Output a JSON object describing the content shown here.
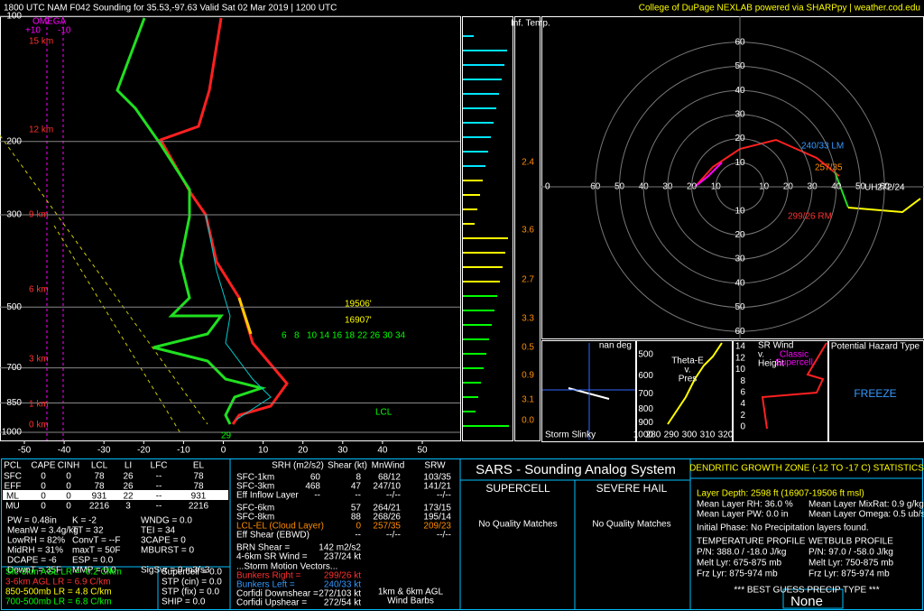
{
  "header": {
    "title": "1800 UTC NAM F042 Sounding for 35.53,-97.63 Valid  Sat 02 Mar 2019 | 1200 UTC",
    "credit": "College of DuPage NEXLAB powered via SHARPpy | weather.cod.edu"
  },
  "skewt": {
    "omega": "OMEGA",
    "omega_ticks": [
      "+10",
      "-10"
    ],
    "pressure_ticks": [
      100,
      200,
      300,
      500,
      700,
      850,
      1000
    ],
    "temp_ticks": [
      -50,
      -40,
      -30,
      -20,
      -10,
      0,
      10,
      20,
      30,
      40,
      50
    ],
    "heights": [
      "15 km",
      "12 km",
      "9 km",
      "6 km",
      "3 km",
      "1 km",
      "0 km"
    ],
    "dgz_top": "19506'",
    "dgz_bottom": "16907'",
    "lcl": "LCL",
    "sfc_temp": "29",
    "mixing_ratios": [
      "6",
      "8",
      "10",
      "14",
      "16",
      "18",
      "22",
      "26",
      "30",
      "34"
    ]
  },
  "inferred_temp": {
    "title": "Inf. Temp.",
    "labels": [
      "2.4",
      "3.6",
      "2.7",
      "3.3",
      "0.5",
      "0.9",
      "3.1",
      "0.0"
    ]
  },
  "hodograph": {
    "rings": [
      10,
      20,
      30,
      40,
      50,
      60
    ],
    "zero": "0",
    "lm": "240/33 LM",
    "mean": "257/35",
    "rm": "299/26 RM",
    "uh": "UH",
    "uh_value": "272/24"
  },
  "slinky": {
    "deg": "nan deg",
    "title": "Storm Slinky"
  },
  "theta_e": {
    "title": [
      "Theta-E",
      "v.",
      "Pres"
    ],
    "yticks": [
      500,
      600,
      700,
      800,
      900,
      1000
    ],
    "xticks": [
      280,
      290,
      300,
      310,
      320
    ]
  },
  "sr_wind": {
    "title": [
      "SR Wind",
      "v.",
      "Height"
    ],
    "note": [
      "Classic",
      "Supercell"
    ],
    "yticks": [
      0,
      2,
      4,
      6,
      8,
      10,
      12,
      14
    ]
  },
  "hazard": {
    "title": "Potential Hazard Type",
    "value": "FREEZE"
  },
  "parcels": {
    "header": [
      "PCL",
      "CAPE",
      "CINH",
      "LCL",
      "LI",
      "LFC",
      "EL"
    ],
    "rows": [
      [
        "SFC",
        "0",
        "0",
        "78",
        "26",
        "--",
        "78"
      ],
      [
        "EFF",
        "0",
        "0",
        "78",
        "26",
        "--",
        "78"
      ],
      [
        "ML",
        "0",
        "0",
        "931",
        "22",
        "--",
        "931"
      ],
      [
        "MU",
        "0",
        "0",
        "2216",
        "3",
        "--",
        "2216"
      ]
    ]
  },
  "indices": [
    [
      "PW = 0.48in",
      "K = -2",
      "WNDG = 0.0"
    ],
    [
      "MeanW = 3.4g/kg",
      "TT = 32",
      "TEI = 34"
    ],
    [
      "LowRH = 82%",
      "ConvT = --F",
      "3CAPE = 0"
    ],
    [
      "MidRH = 31%",
      "maxT = 50F",
      "MBURST = 0"
    ],
    [
      "DCAPE = -6",
      "ESP = 0.0"
    ],
    [
      "DownT = 35F",
      "MMP = 0.0",
      "SigSvr = 0 m3/s3"
    ]
  ],
  "lapse_rates": [
    "Sfc-3km AGL LR = -0.2 C/km",
    "3-6km AGL LR = 6.9 C/km",
    "850-500mb LR = 4.8 C/km",
    "700-500mb LR = 6.8 C/km"
  ],
  "composites": [
    "Supercell = 0.0",
    "STP (cin) = 0.0",
    "STP (fix) = 0.0",
    "SHIP = 0.0"
  ],
  "kinematics": {
    "header": [
      "SRH (m2/s2)",
      "Shear (kt)",
      "MnWind",
      "SRW"
    ],
    "rows": [
      [
        "SFC-1km",
        "60",
        "8",
        "68/12",
        "103/35"
      ],
      [
        "SFC-3km",
        "468",
        "47",
        "247/10",
        "141/21"
      ],
      [
        "Eff Inflow Layer",
        "--",
        "--",
        "--/--",
        "--/--"
      ]
    ],
    "rows2": [
      [
        "SFC-6km",
        "57",
        "264/21",
        "173/15"
      ],
      [
        "SFC-8km",
        "88",
        "268/26",
        "195/14"
      ],
      [
        "LCL-EL (Cloud Layer)",
        "0",
        "257/35",
        "209/23"
      ],
      [
        "Eff Shear (EBWD)",
        "--",
        "--/--",
        "--/--"
      ]
    ],
    "extra": [
      [
        "BRN Shear = ",
        "142 m2/s2"
      ],
      [
        "4-6km SR Wind = ",
        "237/24 kt"
      ]
    ],
    "storm_title": "...Storm Motion Vectors...",
    "storm": [
      [
        "Bunkers Right = ",
        "299/26 kt"
      ],
      [
        "Bunkers Left = ",
        "240/33 kt"
      ],
      [
        "Corfidi Downshear = ",
        "272/103 kt"
      ],
      [
        "Corfidi Upshear = ",
        "272/54 kt"
      ]
    ],
    "barbs_label": [
      "1km & 6km AGL",
      "Wind Barbs"
    ]
  },
  "sars": {
    "title": "SARS - Sounding Analog System",
    "supercell": "SUPERCELL",
    "hail": "SEVERE HAIL",
    "supercell_result": "No Quality Matches",
    "hail_result": "No Quality Matches"
  },
  "dgz": {
    "title": "DENDRITIC GROWTH ZONE (-12 TO -17 C) STATISTICS",
    "depth": "Layer Depth: 2598 ft (16907-19506 ft msl)",
    "rh": "Mean Layer RH: 36.0 %",
    "mixrat": "Mean Layer MixRat: 0.9 g/kg",
    "pw": "Mean Layer PW: 0.0 in",
    "omega": "Mean Layer Omega: 0.5 ub/s",
    "phase": "Initial Phase:  No Precipitation layers found.",
    "temp_title": "TEMPERATURE PROFILE",
    "wb_title": "WETBULB PROFILE",
    "temp": [
      "P/N: 388.0 / -18.0 J/kg",
      "Melt Lyr: 675-875 mb",
      "Frz Lyr: 875-974 mb"
    ],
    "wb": [
      "P/N: 97.0 / -58.0 J/kg",
      "Melt Lyr: 750-875 mb",
      "Frz Lyr: 875-974 mb"
    ],
    "precip_title": "*** BEST GUESS PRECIP TYPE ***",
    "precip": "None"
  }
}
